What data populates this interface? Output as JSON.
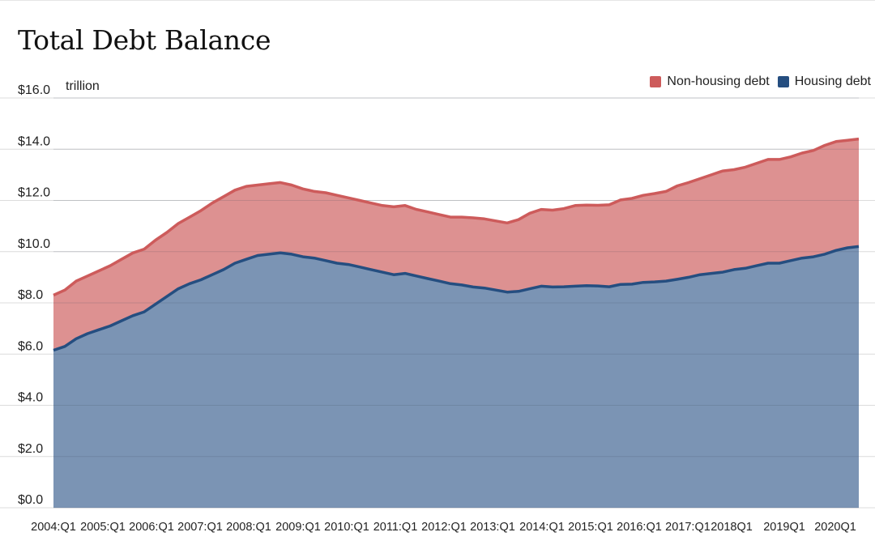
{
  "page": {
    "title": "Total Debt Balance",
    "unit_label": "trillion"
  },
  "legend": {
    "items": [
      {
        "label": "Non-housing debt",
        "color": "#cd5b5b"
      },
      {
        "label": "Housing debt",
        "color": "#254e80"
      }
    ]
  },
  "chart_data": {
    "type": "area",
    "stacked": true,
    "title": "Total Debt Balance",
    "ylabel": "trillion",
    "ylim": [
      0,
      16
    ],
    "yticks": [
      "$0.0",
      "$2.0",
      "$4.0",
      "$6.0",
      "$8.0",
      "$10.0",
      "$12.0",
      "$14.0",
      "$16.0"
    ],
    "grid": true,
    "legend_position": "top-right",
    "x_tick_labels": [
      "2004:Q1",
      "2005:Q1",
      "2006:Q1",
      "2007:Q1",
      "2008:Q1",
      "2009:Q1",
      "2010:Q1",
      "2011:Q1",
      "2012:Q1",
      "2013:Q1",
      "2014:Q1",
      "2015:Q1",
      "2016:Q1",
      "2017:Q1",
      "2018Q1",
      "2019Q1",
      "2020Q1"
    ],
    "x_start": "2004:Q1",
    "x_end": "2020:Q4",
    "series": [
      {
        "name": "Housing debt",
        "color": "#254e80",
        "fill": "#7b94b4",
        "values": [
          6.15,
          6.3,
          6.6,
          6.8,
          6.95,
          7.1,
          7.3,
          7.5,
          7.65,
          7.95,
          8.25,
          8.55,
          8.75,
          8.9,
          9.1,
          9.3,
          9.55,
          9.7,
          9.85,
          9.9,
          9.95,
          9.9,
          9.8,
          9.75,
          9.65,
          9.55,
          9.5,
          9.4,
          9.3,
          9.2,
          9.1,
          9.15,
          9.05,
          8.95,
          8.85,
          8.75,
          8.7,
          8.62,
          8.58,
          8.5,
          8.42,
          8.45,
          8.55,
          8.65,
          8.62,
          8.63,
          8.65,
          8.67,
          8.66,
          8.63,
          8.72,
          8.73,
          8.8,
          8.82,
          8.85,
          8.92,
          9.0,
          9.1,
          9.15,
          9.2,
          9.3,
          9.35,
          9.45,
          9.55,
          9.55,
          9.65,
          9.75,
          9.8,
          9.9,
          10.05,
          10.15,
          10.2
        ]
      },
      {
        "name": "Non-housing debt",
        "color": "#cd5b5b",
        "fill": "#dd9191",
        "values": [
          2.15,
          2.2,
          2.25,
          2.25,
          2.3,
          2.35,
          2.4,
          2.45,
          2.45,
          2.5,
          2.5,
          2.55,
          2.6,
          2.7,
          2.8,
          2.85,
          2.85,
          2.85,
          2.75,
          2.75,
          2.75,
          2.7,
          2.65,
          2.6,
          2.65,
          2.65,
          2.6,
          2.6,
          2.6,
          2.6,
          2.65,
          2.65,
          2.6,
          2.6,
          2.6,
          2.6,
          2.65,
          2.7,
          2.7,
          2.7,
          2.7,
          2.8,
          2.95,
          3.0,
          3.0,
          3.05,
          3.15,
          3.15,
          3.15,
          3.2,
          3.3,
          3.35,
          3.4,
          3.45,
          3.5,
          3.65,
          3.7,
          3.75,
          3.85,
          3.95,
          3.9,
          3.95,
          4.0,
          4.05,
          4.05,
          4.05,
          4.1,
          4.15,
          4.25,
          4.25,
          4.2,
          4.2
        ]
      }
    ]
  }
}
